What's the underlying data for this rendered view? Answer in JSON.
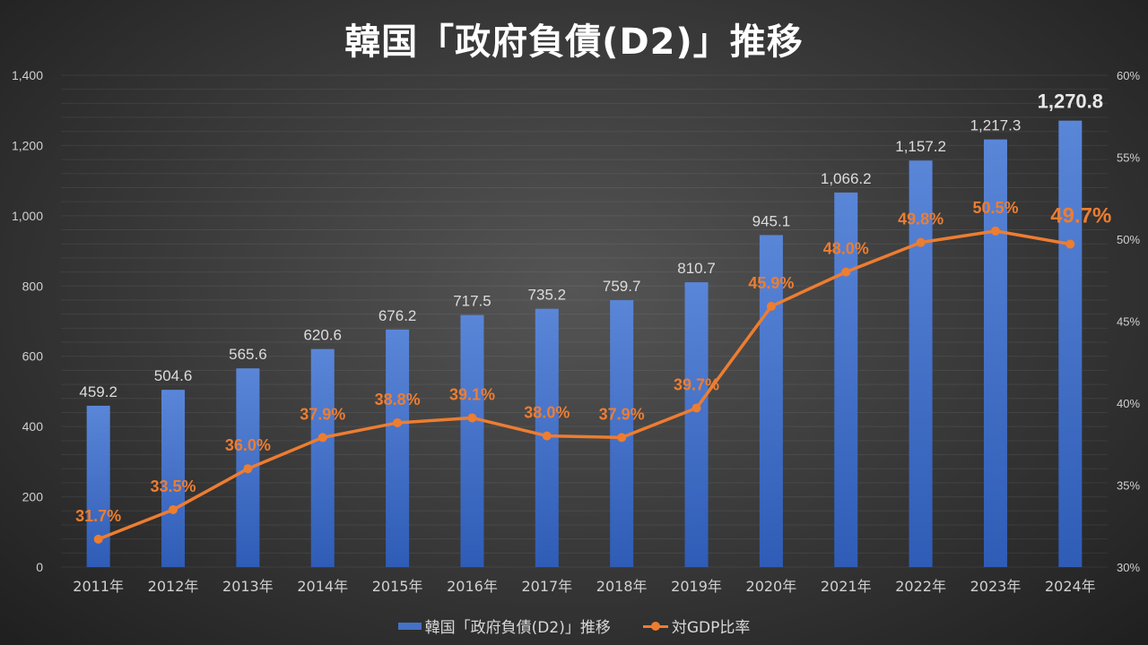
{
  "title": "韓国「政府負債(D2)」推移",
  "chart_data": {
    "type": "bar+line",
    "title": "韓国「政府負債(D2)」推移",
    "categories": [
      "2011年",
      "2012年",
      "2013年",
      "2014年",
      "2015年",
      "2016年",
      "2017年",
      "2018年",
      "2019年",
      "2020年",
      "2021年",
      "2022年",
      "2023年",
      "2024年"
    ],
    "series": [
      {
        "name": "韓国「政府負債(D2)」推移",
        "type": "bar",
        "axis": "left",
        "color": "#4472c4",
        "values": [
          459.2,
          504.6,
          565.6,
          620.6,
          676.2,
          717.5,
          735.2,
          759.7,
          810.7,
          945.1,
          1066.2,
          1157.2,
          1217.3,
          1270.8
        ],
        "labels": [
          "459.2",
          "504.6",
          "565.6",
          "620.6",
          "676.2",
          "717.5",
          "735.2",
          "759.7",
          "810.7",
          "945.1",
          "1,066.2",
          "1,157.2",
          "1,217.3",
          "1,270.8"
        ]
      },
      {
        "name": "対GDP比率",
        "type": "line",
        "axis": "right",
        "color": "#ed7d31",
        "values": [
          31.7,
          33.5,
          36.0,
          37.9,
          38.8,
          39.1,
          38.0,
          37.9,
          39.7,
          45.9,
          48.0,
          49.8,
          50.5,
          49.7
        ],
        "labels": [
          "31.7%",
          "33.5%",
          "36.0%",
          "37.9%",
          "38.8%",
          "39.1%",
          "38.0%",
          "37.9%",
          "39.7%",
          "45.9%",
          "48.0%",
          "49.8%",
          "50.5%",
          "49.7%"
        ]
      }
    ],
    "y_left": {
      "min": 0,
      "max": 1400,
      "ticks": [
        "0",
        "200",
        "400",
        "600",
        "800",
        "1,000",
        "1,200",
        "1,400"
      ]
    },
    "y_right": {
      "min": 30,
      "max": 60,
      "ticks": [
        "30%",
        "35%",
        "40%",
        "45%",
        "50%",
        "55%",
        "60%"
      ]
    },
    "legend": {
      "placement": "bottom",
      "items": [
        "韓国「政府負債(D2)」推移",
        "対GDP比率"
      ]
    },
    "grid": true
  }
}
